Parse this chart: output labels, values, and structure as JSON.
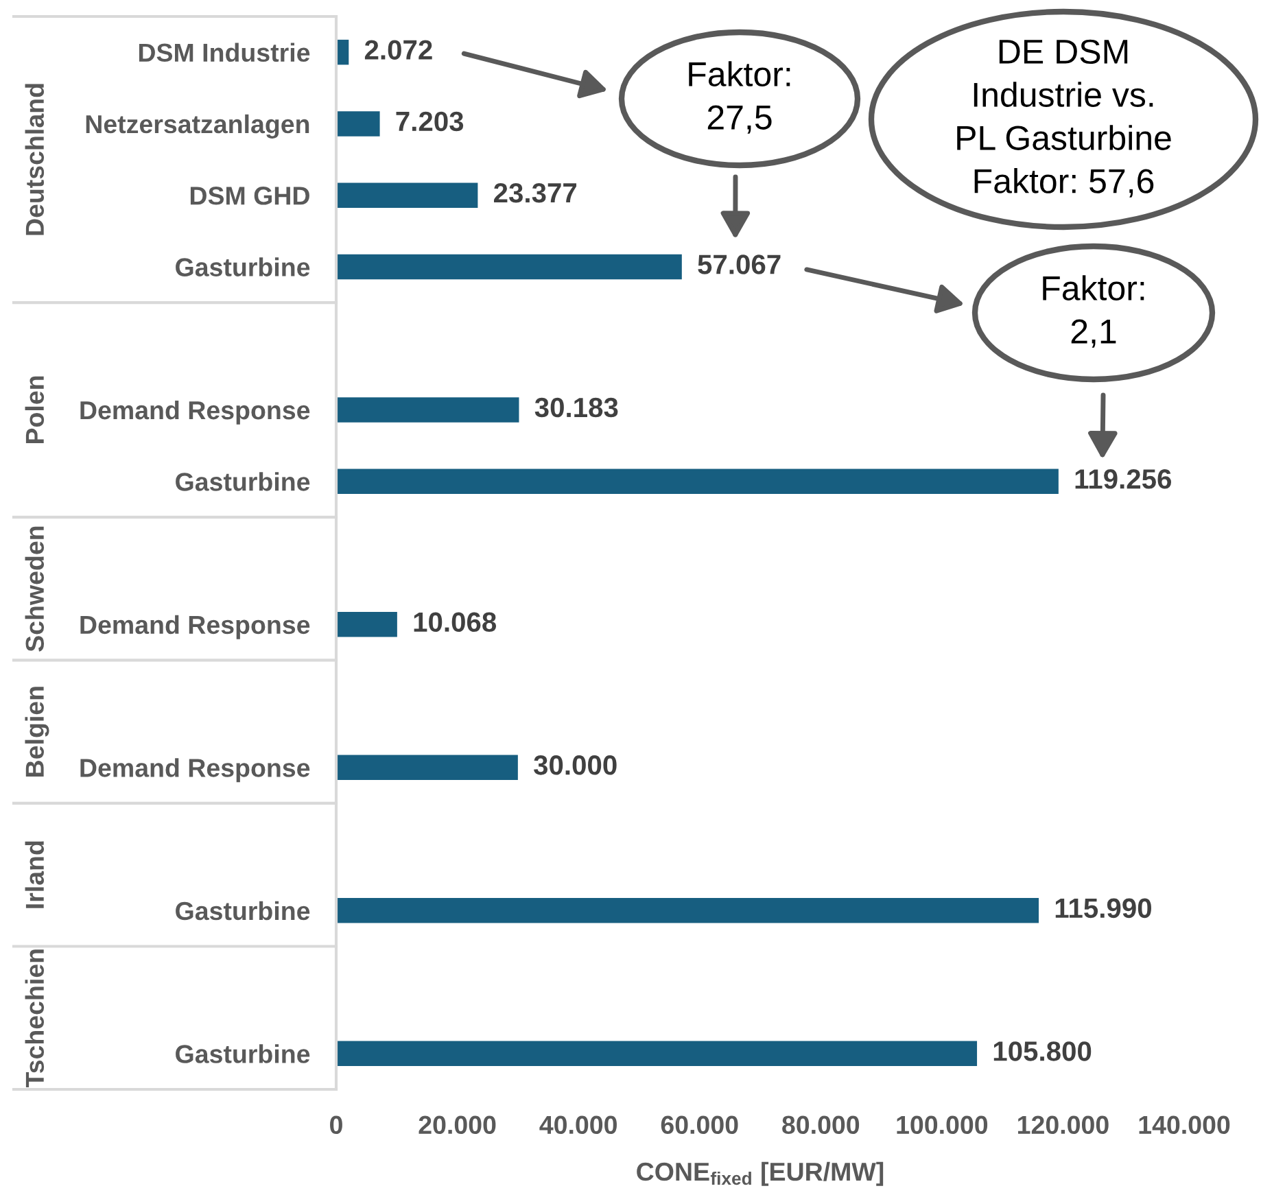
{
  "chart_data": {
    "type": "bar",
    "orientation": "horizontal",
    "categories": [
      "DSM Industrie",
      "Netzersatzanlagen",
      "DSM GHD",
      "Gasturbine",
      null,
      "Demand Response",
      "Gasturbine",
      null,
      "Demand Response",
      null,
      "Demand Response",
      null,
      "Gasturbine",
      null,
      "Gasturbine"
    ],
    "values": [
      2072,
      7203,
      23377,
      57067,
      null,
      30183,
      119256,
      null,
      10068,
      null,
      30000,
      null,
      115990,
      null,
      105800
    ],
    "value_labels": [
      "2.072",
      "7.203",
      "23.377",
      "57.067",
      null,
      "30.183",
      "119.256",
      null,
      "10.068",
      null,
      "30.000",
      null,
      "115.990",
      null,
      "105.800"
    ],
    "color": "#175e80",
    "xlim": [
      0,
      140000
    ],
    "xticks": [
      0,
      {
        "value": 20000,
        "label": "20.000"
      },
      {
        "value": 40000,
        "label": "40.000"
      },
      {
        "value": 60000,
        "label": "60.000"
      },
      {
        "value": 80000,
        "label": "80.000"
      },
      {
        "value": 100000,
        "label": "100.000"
      },
      {
        "value": 120000,
        "label": "120.000"
      },
      {
        "value": 140000,
        "label": "140.000"
      }
    ],
    "xlabel": "CONE$_{fixed}$ [EUR/MW]",
    "annotations": [
      "Deutschland",
      "Polen",
      "Schweden",
      "Belgien",
      "Irland",
      "Tschechien",
      "Faktor:\n27,5",
      "DE DSM\nIndustrie vs.\nPL Gasturbine\nFaktor: 57,6",
      "Faktor:\n2,1"
    ]
  }
}
